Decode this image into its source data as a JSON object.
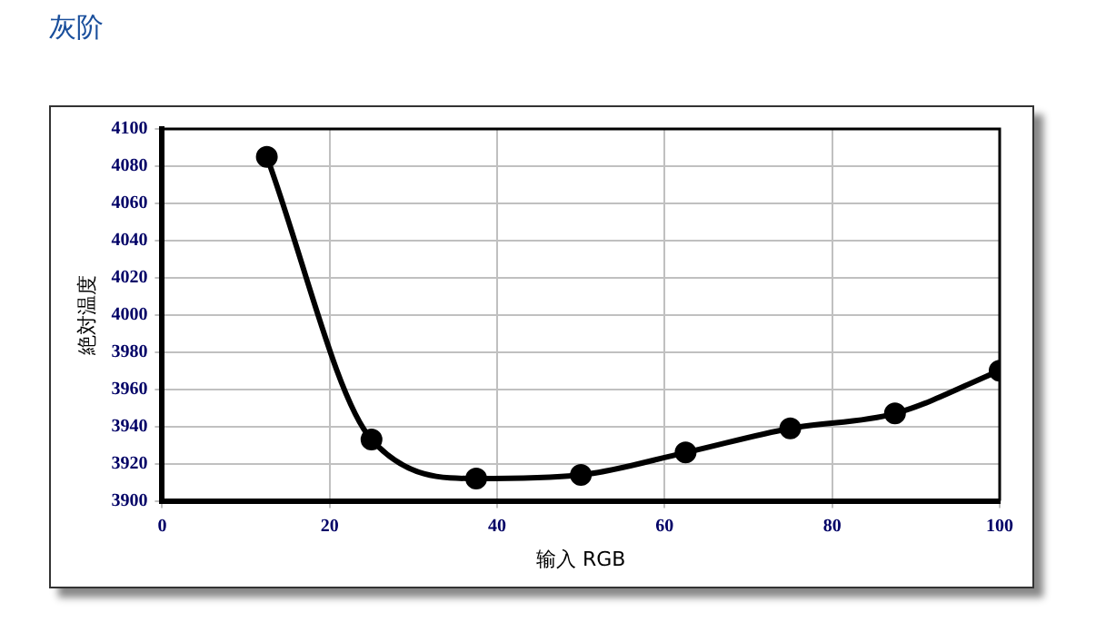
{
  "chart_data": {
    "type": "line",
    "title": "灰阶",
    "xlabel": "输入 RGB",
    "ylabel": "絶対温度",
    "x": [
      12.5,
      25,
      37.5,
      50,
      62.5,
      75,
      87.5,
      100
    ],
    "series": [
      {
        "color": "#000000",
        "values": [
          4085,
          3933,
          3912,
          3914,
          3926,
          3939,
          3947,
          3970
        ]
      }
    ],
    "xlim": [
      0,
      100
    ],
    "xticks": [
      0,
      20,
      40,
      60,
      80,
      100
    ],
    "ylim": [
      3900,
      4100
    ],
    "yticks": [
      3900,
      3920,
      3940,
      3960,
      3980,
      4000,
      4020,
      4040,
      4060,
      4080,
      4100
    ],
    "grid": true,
    "legend": false,
    "marker": "circle",
    "line_style": "solid"
  }
}
